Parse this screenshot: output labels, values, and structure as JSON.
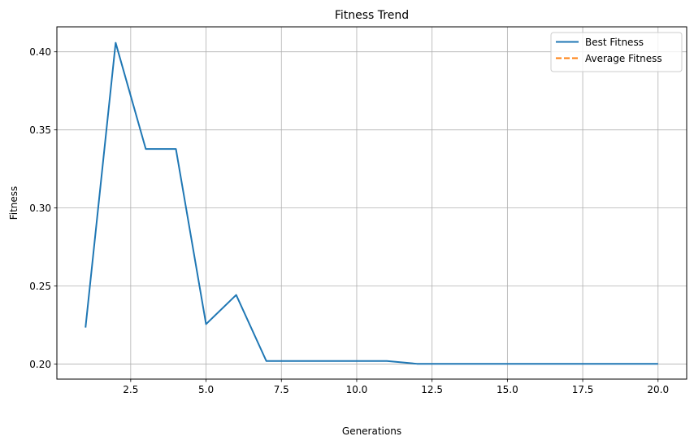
{
  "chart_data": {
    "type": "line",
    "title": "Fitness Trend",
    "xlabel": "Generations",
    "ylabel": "Fitness",
    "xlim": [
      0.05,
      20.95
    ],
    "ylim": [
      0.1904,
      0.416
    ],
    "x_ticks": [
      2.5,
      5.0,
      7.5,
      10.0,
      12.5,
      15.0,
      17.5,
      20.0
    ],
    "x_tick_labels": [
      "2.5",
      "5.0",
      "7.5",
      "10.0",
      "12.5",
      "15.0",
      "17.5",
      "20.0"
    ],
    "y_ticks": [
      0.2,
      0.25,
      0.3,
      0.35,
      0.4
    ],
    "y_tick_labels": [
      "0.20",
      "0.25",
      "0.30",
      "0.35",
      "0.40"
    ],
    "grid": true,
    "legend_position": "top-right",
    "series": [
      {
        "name": "Best Fitness",
        "color": "#1f77b4",
        "style": "solid",
        "x": [
          1,
          2,
          3,
          4,
          5,
          6,
          7,
          8,
          9,
          10,
          11,
          12,
          13,
          14,
          15,
          16,
          17,
          18,
          19,
          20
        ],
        "values": [
          0.2234,
          0.4058,
          0.3378,
          0.3378,
          0.2256,
          0.2443,
          0.202,
          0.202,
          0.202,
          0.202,
          0.202,
          0.2002,
          0.2002,
          0.2002,
          0.2002,
          0.2002,
          0.2002,
          0.2002,
          0.2002,
          0.2002
        ]
      },
      {
        "name": "Average Fitness",
        "color": "#ff7f0e",
        "style": "dashed",
        "x": [],
        "values": []
      }
    ]
  }
}
